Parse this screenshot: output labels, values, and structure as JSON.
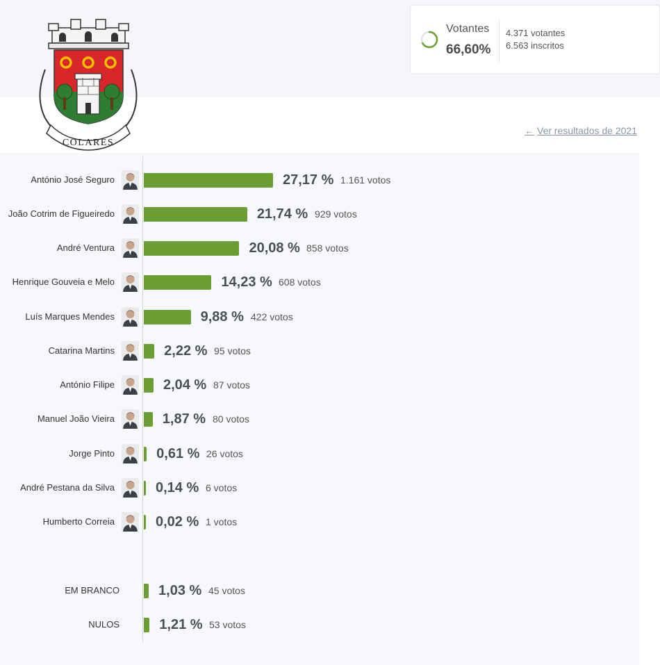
{
  "header": {
    "logo_text": "COLARES",
    "turnout": {
      "label": "Votantes",
      "percent": "66,60%",
      "percent_value": 66.6,
      "voters": "4.371 votantes",
      "registered": "6.563 inscritos"
    },
    "previous_link": "Ver resultados de 2021"
  },
  "colors": {
    "bar": "#6a9e35",
    "accent_ring": "#6a9e35",
    "crest_red": "#d9262b",
    "crest_green": "#2e7d32",
    "crest_gold": "#f2c200"
  },
  "chart_data": {
    "type": "bar",
    "orientation": "horizontal",
    "xlim": [
      0,
      27.17
    ],
    "grid": false,
    "legend": "none",
    "series": [
      {
        "values": [
          27.17,
          21.74,
          20.08,
          14.23,
          9.88,
          2.22,
          2.04,
          1.87,
          0.61,
          0.14,
          0.02,
          1.03,
          1.21
        ]
      }
    ],
    "rows": [
      {
        "name": "António José Seguro",
        "value": 27.17,
        "pct": "27,17 %",
        "votes": "1.161 votos"
      },
      {
        "name": "João Cotrim de Figueiredo",
        "value": 21.74,
        "pct": "21,74 %",
        "votes": "929 votos"
      },
      {
        "name": "André Ventura",
        "value": 20.08,
        "pct": "20,08 %",
        "votes": "858 votos"
      },
      {
        "name": "Henrique Gouveia e Melo",
        "value": 14.23,
        "pct": "14,23 %",
        "votes": "608 votos"
      },
      {
        "name": "Luís Marques Mendes",
        "value": 9.88,
        "pct": "9,88 %",
        "votes": "422 votos"
      },
      {
        "name": "Catarina Martins",
        "value": 2.22,
        "pct": "2,22 %",
        "votes": "95 votos"
      },
      {
        "name": "António Filipe",
        "value": 2.04,
        "pct": "2,04 %",
        "votes": "87 votos"
      },
      {
        "name": "Manuel João Vieira",
        "value": 1.87,
        "pct": "1,87 %",
        "votes": "80 votos"
      },
      {
        "name": "Jorge Pinto",
        "value": 0.61,
        "pct": "0,61 %",
        "votes": "26 votos"
      },
      {
        "name": "André Pestana da Silva",
        "value": 0.14,
        "pct": "0,14 %",
        "votes": "6 votos"
      },
      {
        "name": "Humberto Correia",
        "value": 0.02,
        "pct": "0,02 %",
        "votes": "1 votos"
      },
      {
        "name": "EM BRANCO",
        "value": 1.03,
        "pct": "1,03 %",
        "votes": "45 votos"
      },
      {
        "name": "NULOS",
        "value": 1.21,
        "pct": "1,21 %",
        "votes": "53 votos"
      }
    ]
  }
}
